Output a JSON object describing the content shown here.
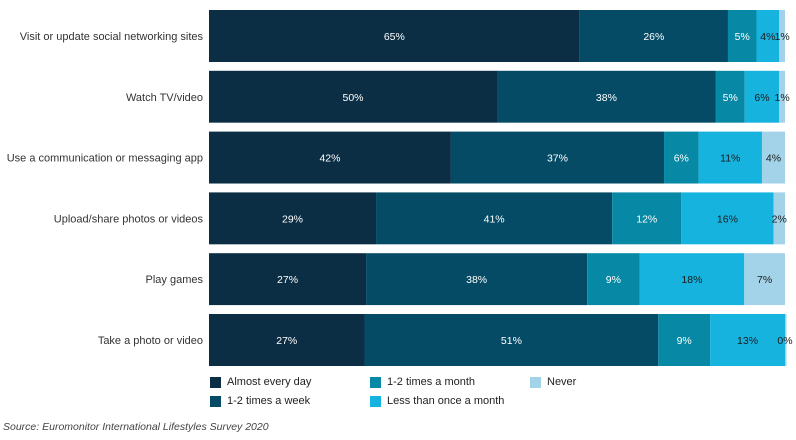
{
  "chart_data": {
    "type": "bar",
    "orientation": "horizontal",
    "stacked": true,
    "percent_stacked": true,
    "xlim": [
      0,
      100
    ],
    "categories": [
      "Visit or update social networking sites",
      "Watch TV/video",
      "Use a communication or messaging app",
      "Upload/share photos or videos",
      "Play games",
      "Take a photo or video"
    ],
    "series": [
      {
        "name": "Almost every day",
        "color": "#0b2e44",
        "values": [
          65,
          50,
          42,
          29,
          27,
          27
        ]
      },
      {
        "name": "1-2 times a week",
        "color": "#054b66",
        "values": [
          26,
          38,
          37,
          41,
          38,
          51
        ]
      },
      {
        "name": "1-2 times a month",
        "color": "#0788a4",
        "values": [
          5,
          5,
          6,
          12,
          9,
          9
        ]
      },
      {
        "name": "Less than once a month",
        "color": "#17b3df",
        "values": [
          4,
          6,
          11,
          16,
          18,
          13
        ]
      },
      {
        "name": "Never",
        "color": "#a3d3e8",
        "values": [
          1,
          1,
          4,
          2,
          7,
          0
        ]
      }
    ],
    "legend_position": "bottom",
    "grid": false
  },
  "source": "Source: Euromonitor International Lifestyles Survey 2020"
}
